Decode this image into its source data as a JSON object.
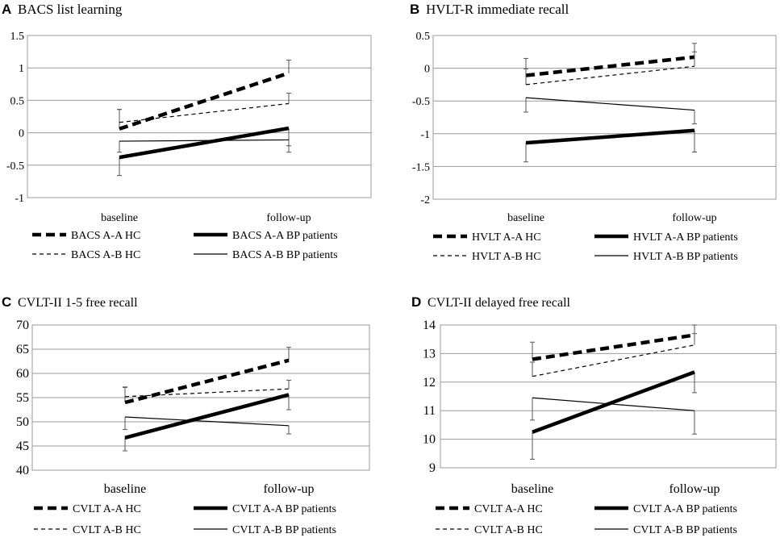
{
  "chart_data": [
    {
      "type": "line",
      "panel": "A",
      "title": "BACS list learning",
      "categories": [
        "baseline",
        "follow-up"
      ],
      "ylim": [
        -1,
        1.5
      ],
      "yticks": [
        "1.5",
        "1",
        "0.5",
        "0",
        "-0.5",
        "-1"
      ],
      "grid": true,
      "series": [
        {
          "name": "BACS A-A HC",
          "style": "thick-dashed",
          "values": [
            0.06,
            0.92
          ],
          "error": [
            0.3,
            0.2
          ]
        },
        {
          "name": "BACS A-A BP patients",
          "style": "thick-solid",
          "values": [
            -0.38,
            0.07
          ],
          "error": [
            0.28,
            0.27
          ]
        },
        {
          "name": "BACS A-B HC",
          "style": "thin-dashed",
          "values": [
            0.16,
            0.45
          ],
          "error": [
            0.2,
            0.16
          ]
        },
        {
          "name": "BACS A-B BP patients",
          "style": "thin-solid",
          "values": [
            -0.13,
            -0.11
          ],
          "error": [
            0.17,
            0.19
          ]
        }
      ]
    },
    {
      "type": "line",
      "panel": "B",
      "title": "HVLT-R immediate recall",
      "categories": [
        "baseline",
        "follow-up"
      ],
      "ylim": [
        -2,
        0.5
      ],
      "yticks": [
        "0.5",
        "0",
        "-0.5",
        "-1",
        "-1.5",
        "-2"
      ],
      "grid": true,
      "series": [
        {
          "name": "HVLT A-A HC",
          "style": "thick-dashed",
          "values": [
            -0.11,
            0.17
          ],
          "error": [
            0.26,
            0.21
          ]
        },
        {
          "name": "HVLT A-A BP patients",
          "style": "thick-solid",
          "values": [
            -1.14,
            -0.95
          ],
          "error": [
            0.29,
            0.33
          ]
        },
        {
          "name": "HVLT A-B HC",
          "style": "thin-dashed",
          "values": [
            -0.25,
            0.03
          ],
          "error": [
            0.24,
            0.22
          ]
        },
        {
          "name": "HVLT A-B BP patients",
          "style": "thin-solid",
          "values": [
            -0.45,
            -0.64
          ],
          "error": [
            0.22,
            0.21
          ]
        }
      ]
    },
    {
      "type": "line",
      "panel": "C",
      "title": "CVLT-II 1-5  free recall",
      "categories": [
        "baseline",
        "follow-up"
      ],
      "ylim": [
        40,
        70
      ],
      "yticks": [
        "70",
        "65",
        "60",
        "55",
        "50",
        "45",
        "40"
      ],
      "grid": true,
      "series": [
        {
          "name": "CVLT A-A HC",
          "style": "thick-dashed",
          "values": [
            54.0,
            62.7
          ],
          "error": [
            3.1,
            2.7
          ]
        },
        {
          "name": "CVLT A-A BP patients",
          "style": "thick-solid",
          "values": [
            46.7,
            55.6
          ],
          "error": [
            2.7,
            3.1
          ]
        },
        {
          "name": "CVLT A-B HC",
          "style": "thin-dashed",
          "values": [
            55.2,
            56.8
          ],
          "error": [
            2.0,
            1.8
          ]
        },
        {
          "name": "CVLT A-B BP patients",
          "style": "thin-solid",
          "values": [
            51.0,
            49.2
          ],
          "error": [
            2.6,
            1.7
          ]
        }
      ]
    },
    {
      "type": "line",
      "panel": "D",
      "title": "CVLT-II delayed  free recall",
      "categories": [
        "baseline",
        "follow-up"
      ],
      "ylim": [
        9,
        14
      ],
      "yticks": [
        "14",
        "13",
        "12",
        "11",
        "10",
        "9"
      ],
      "grid": true,
      "series": [
        {
          "name": "CVLT A-A HC",
          "style": "thick-dashed",
          "values": [
            12.8,
            13.65
          ],
          "error": [
            0.6,
            0.35
          ]
        },
        {
          "name": "CVLT A-A BP patients",
          "style": "thick-solid",
          "values": [
            10.25,
            12.35
          ],
          "error": [
            0.95,
            0.72
          ]
        },
        {
          "name": "CVLT A-B HC",
          "style": "thin-dashed",
          "values": [
            12.2,
            13.3
          ],
          "error": [
            0.5,
            0.4
          ]
        },
        {
          "name": "CVLT A-B BP patients",
          "style": "thin-solid",
          "values": [
            11.45,
            11.0
          ],
          "error": [
            0.78,
            0.82
          ]
        }
      ]
    }
  ]
}
